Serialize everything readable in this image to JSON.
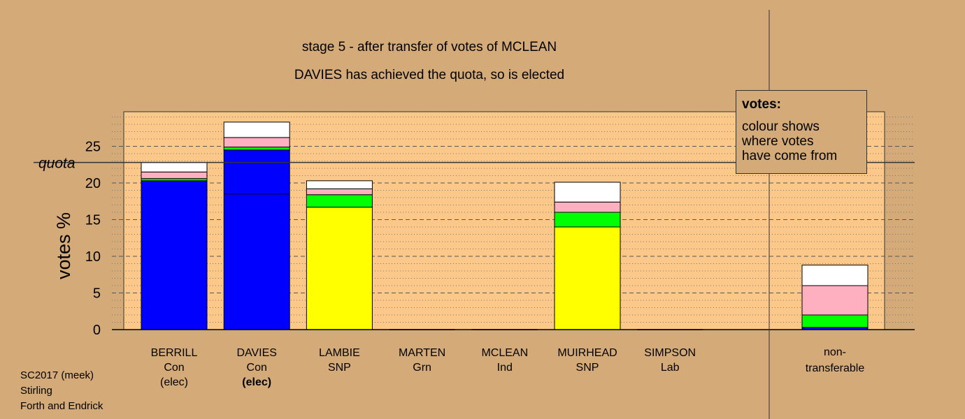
{
  "header": {
    "title": "stage 5 - after transfer of votes of MCLEAN",
    "subtitle": "DAVIES has achieved the quota, so is elected"
  },
  "legend": {
    "title": "votes:",
    "lines": [
      "colour shows",
      "where votes",
      "have come from"
    ]
  },
  "footer": {
    "line1": "SC2017 (meek)",
    "line2": "Stirling",
    "line3": "Forth and Endrick"
  },
  "colors": {
    "background": "#d4aa78",
    "plot_background": "#fbc88a",
    "con": "#0000ff",
    "snp": "#ffff00",
    "grn": "#00ff00",
    "lab": "#ffb0c0",
    "ind": "#ffffff"
  },
  "chart_data": {
    "type": "bar",
    "stacked": true,
    "ylabel": "votes %",
    "ylim": [
      0,
      30
    ],
    "yticks": [
      0,
      5,
      10,
      15,
      20,
      25
    ],
    "quota": 22.8,
    "quota_label": "quota",
    "grid": true,
    "legend_position": "top-right",
    "categories": [
      {
        "name": "BERRILL",
        "party": "Con",
        "status": "(elec)",
        "status_bold": false,
        "base": "con",
        "separator": null,
        "segments": [
          {
            "source": "con",
            "value": 20.3
          },
          {
            "source": "grn",
            "value": 0.3
          },
          {
            "source": "lab",
            "value": 0.9
          },
          {
            "source": "ind",
            "value": 1.3
          }
        ]
      },
      {
        "name": "DAVIES",
        "party": "Con",
        "status": "(elec)",
        "status_bold": true,
        "base": "con",
        "separator": 18.5,
        "segments": [
          {
            "source": "con",
            "value": 24.5
          },
          {
            "source": "grn",
            "value": 0.4
          },
          {
            "source": "lab",
            "value": 1.3
          },
          {
            "source": "ind",
            "value": 2.1
          }
        ]
      },
      {
        "name": "LAMBIE",
        "party": "SNP",
        "status": "",
        "status_bold": false,
        "base": "snp",
        "separator": null,
        "segments": [
          {
            "source": "snp",
            "value": 16.7
          },
          {
            "source": "grn",
            "value": 1.7
          },
          {
            "source": "lab",
            "value": 0.8
          },
          {
            "source": "ind",
            "value": 1.1
          }
        ]
      },
      {
        "name": "MARTEN",
        "party": "Grn",
        "status": "",
        "status_bold": false,
        "base": "grn",
        "separator": null,
        "segments": []
      },
      {
        "name": "MCLEAN",
        "party": "Ind",
        "status": "",
        "status_bold": false,
        "base": "ind",
        "separator": null,
        "segments": []
      },
      {
        "name": "MUIRHEAD",
        "party": "SNP",
        "status": "",
        "status_bold": false,
        "base": "snp",
        "separator": null,
        "segments": [
          {
            "source": "snp",
            "value": 14.0
          },
          {
            "source": "grn",
            "value": 2.0
          },
          {
            "source": "lab",
            "value": 1.4
          },
          {
            "source": "ind",
            "value": 2.7
          }
        ]
      },
      {
        "name": "SIMPSON",
        "party": "Lab",
        "status": "",
        "status_bold": false,
        "base": "lab",
        "separator": null,
        "segments": []
      }
    ],
    "non_transferable": {
      "label_line1": "non-",
      "label_line2": "transferable",
      "segments": [
        {
          "source": "con",
          "value": 0.3
        },
        {
          "source": "grn",
          "value": 1.7
        },
        {
          "source": "lab",
          "value": 4.0
        },
        {
          "source": "ind",
          "value": 2.8
        }
      ]
    }
  }
}
